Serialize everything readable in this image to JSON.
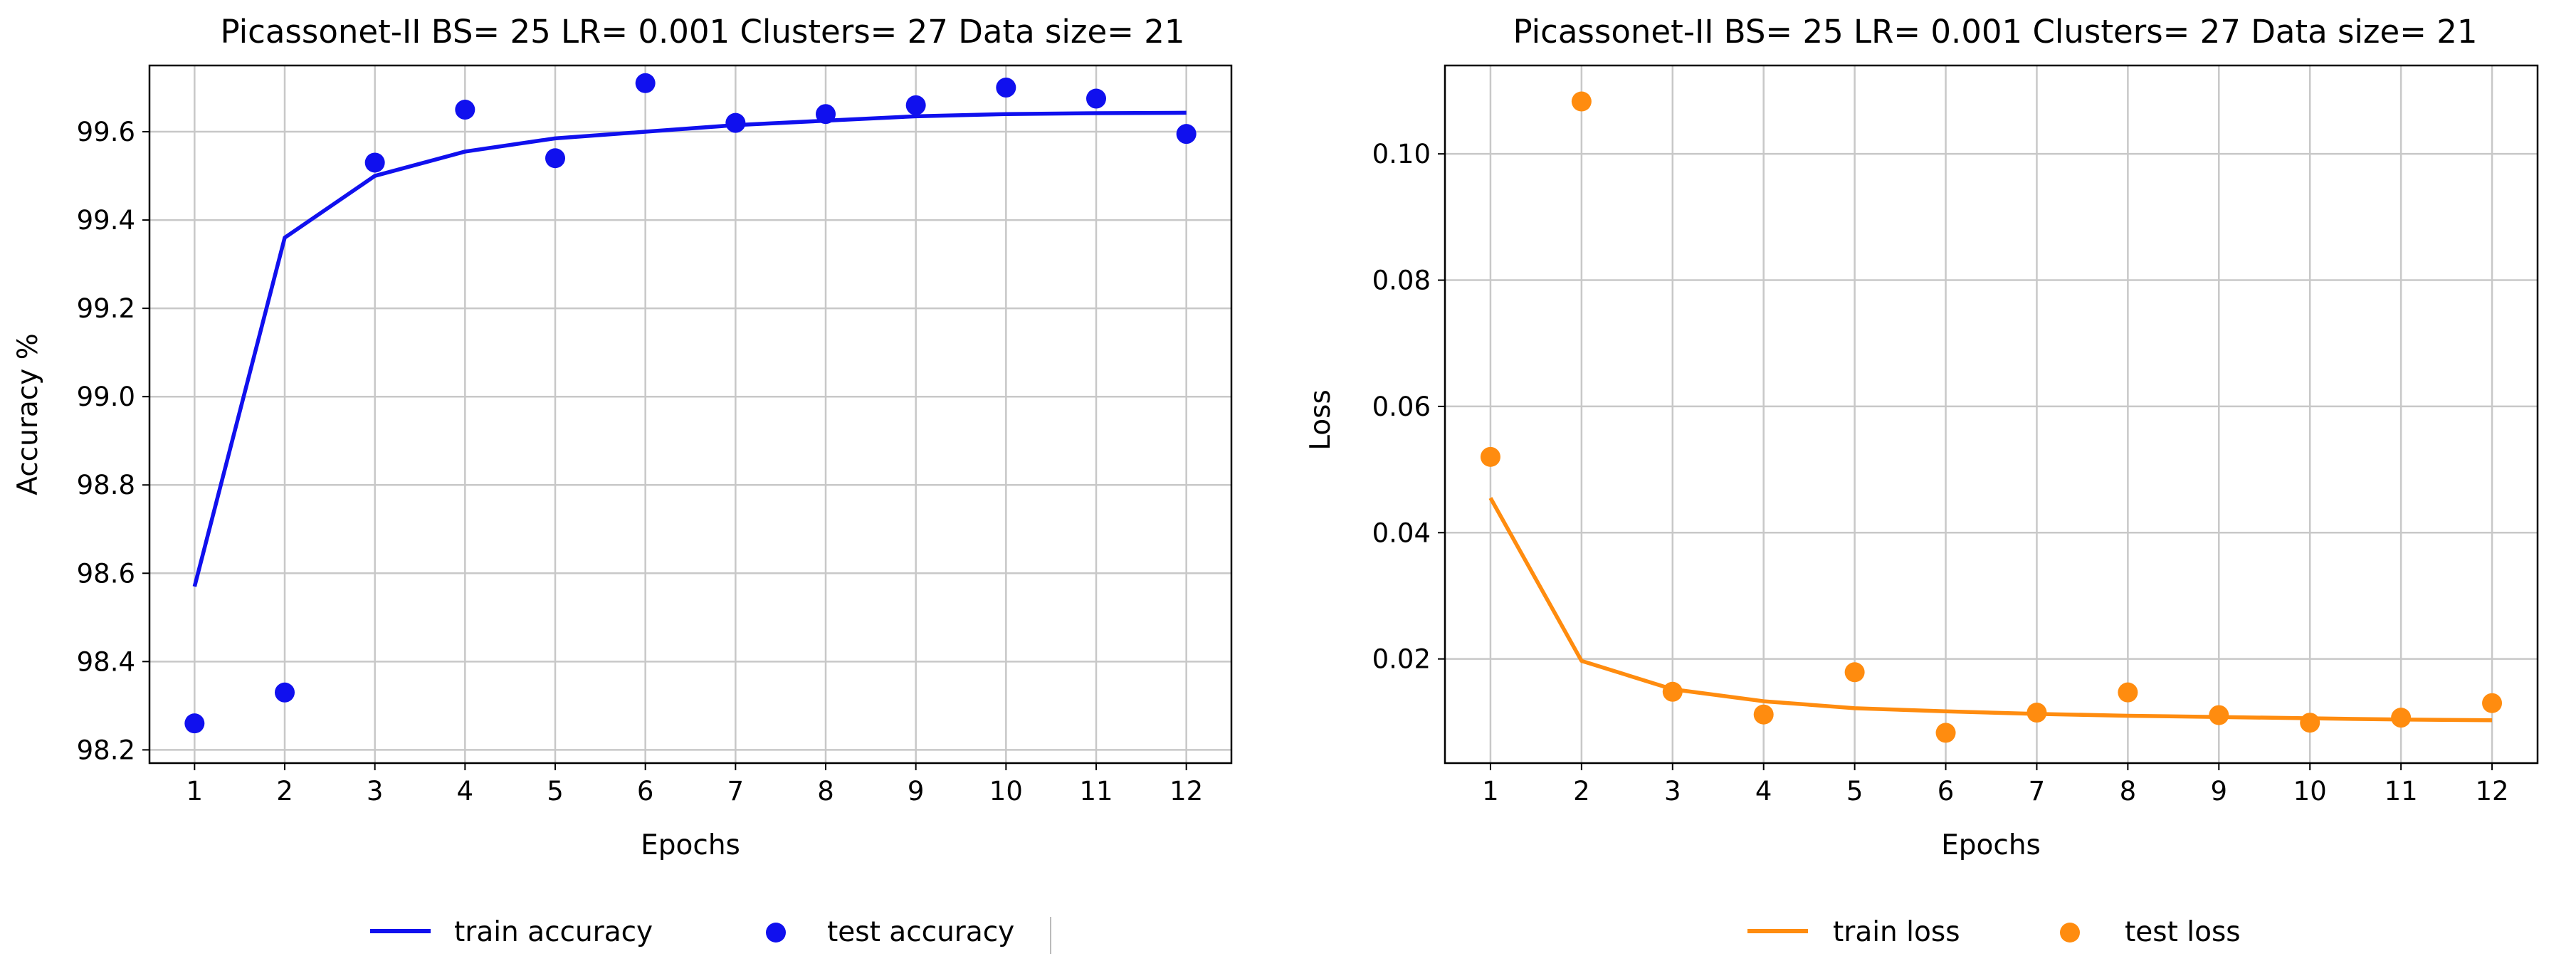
{
  "chart_data": [
    {
      "type": "line",
      "title": "Picassonet-II BS= 25 LR= 0.001 Clusters= 27 Data size= 21",
      "xlabel": "Epochs",
      "ylabel": "Accuracy %",
      "x": [
        1,
        2,
        3,
        4,
        5,
        6,
        7,
        8,
        9,
        10,
        11,
        12
      ],
      "xlim": [
        0.5,
        12.5
      ],
      "ylim": [
        98.17,
        99.75
      ],
      "yticks": [
        "98.2",
        "98.4",
        "98.6",
        "98.8",
        "99.0",
        "99.2",
        "99.4",
        "99.6"
      ],
      "xticks": [
        "1",
        "2",
        "3",
        "4",
        "5",
        "6",
        "7",
        "8",
        "9",
        "10",
        "11",
        "12"
      ],
      "grid": true,
      "legend_position": "bottom",
      "series": [
        {
          "name": "train accuracy",
          "style": "line",
          "color": "#1010ee",
          "values": [
            98.57,
            99.36,
            99.5,
            99.555,
            99.585,
            99.6,
            99.615,
            99.625,
            99.635,
            99.64,
            99.642,
            99.643
          ]
        },
        {
          "name": "test accuracy",
          "style": "scatter",
          "color": "#1010ee",
          "values": [
            98.26,
            98.33,
            99.53,
            99.65,
            99.54,
            99.71,
            99.62,
            99.64,
            99.66,
            99.7,
            99.675,
            99.595
          ]
        }
      ]
    },
    {
      "type": "line",
      "title": "Picassonet-II BS= 25 LR= 0.001 Clusters= 27 Data size= 21",
      "xlabel": "Epochs",
      "ylabel": "Loss",
      "x": [
        1,
        2,
        3,
        4,
        5,
        6,
        7,
        8,
        9,
        10,
        11,
        12
      ],
      "xlim": [
        0.5,
        12.5
      ],
      "ylim": [
        0.0035,
        0.114
      ],
      "yticks": [
        "0.02",
        "0.04",
        "0.06",
        "0.08",
        "0.10"
      ],
      "xticks": [
        "1",
        "2",
        "3",
        "4",
        "5",
        "6",
        "7",
        "8",
        "9",
        "10",
        "11",
        "12"
      ],
      "grid": true,
      "legend_position": "bottom",
      "series": [
        {
          "name": "train loss",
          "style": "line",
          "color": "#ff8c0f",
          "values": [
            0.0455,
            0.0197,
            0.0152,
            0.0133,
            0.0122,
            0.0117,
            0.0113,
            0.011,
            0.0108,
            0.0106,
            0.0104,
            0.0103
          ]
        },
        {
          "name": "test loss",
          "style": "scatter",
          "color": "#ff8c0f",
          "values": [
            0.052,
            0.1083,
            0.0148,
            0.0112,
            0.0179,
            0.0083,
            0.0115,
            0.0147,
            0.0111,
            0.0099,
            0.0107,
            0.013
          ]
        }
      ]
    }
  ]
}
